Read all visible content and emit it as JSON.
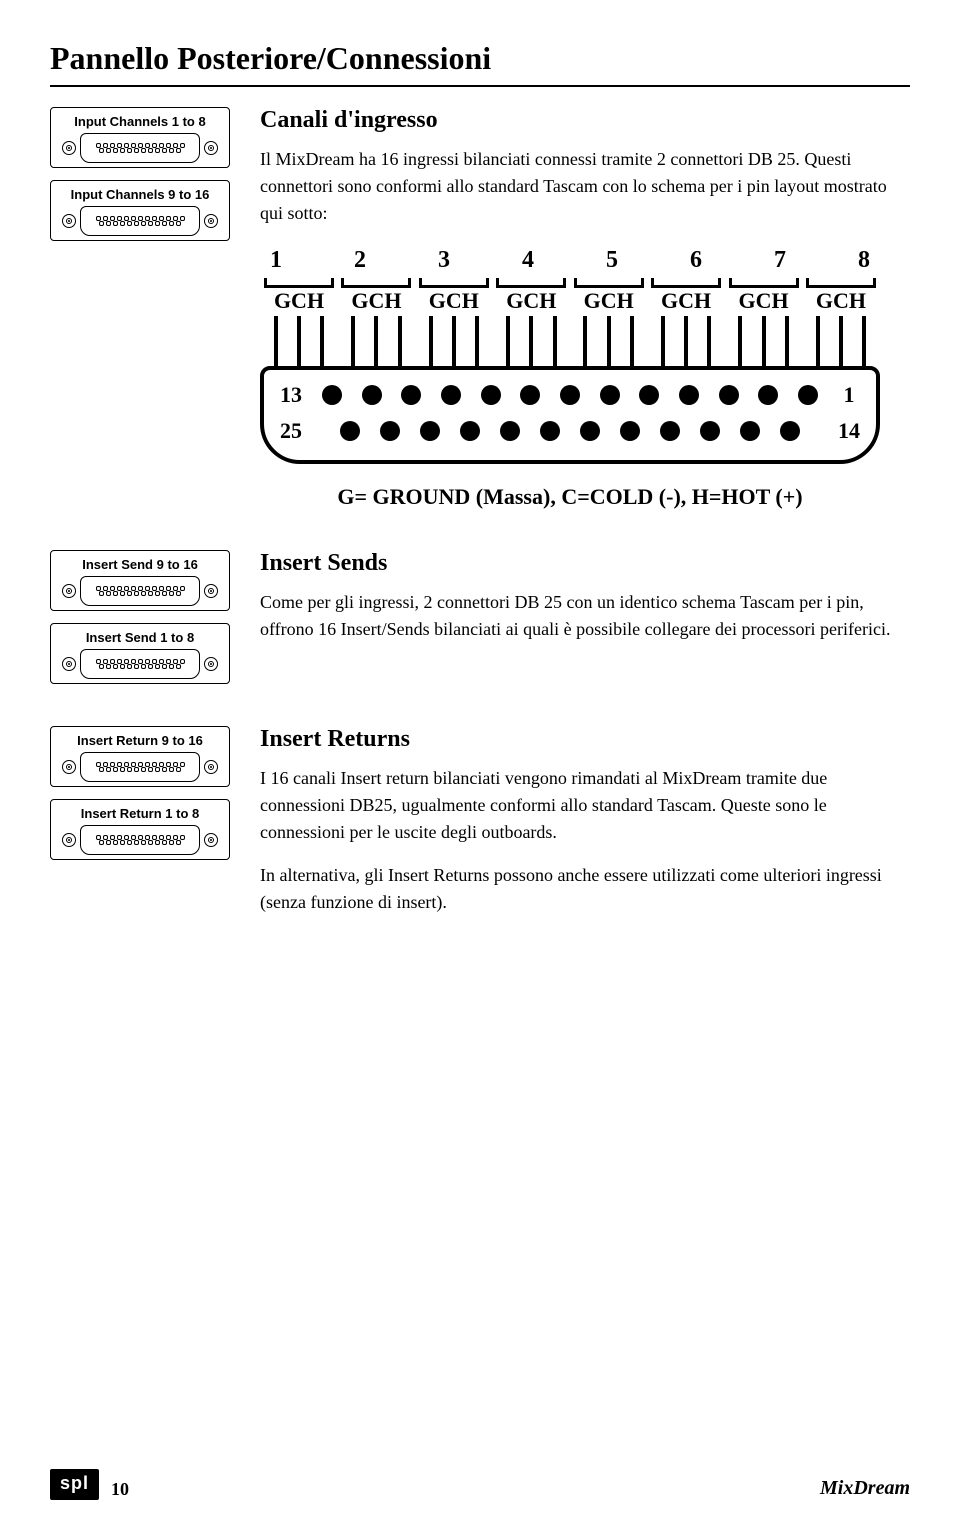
{
  "page_title": "Pannello Posteriore/Connessioni",
  "connectors": {
    "input1_label": "Input Channels 1 to 8",
    "input2_label": "Input Channels 9 to 16",
    "send1_label": "Insert Send 9 to 16",
    "send2_label": "Insert Send 1 to 8",
    "return1_label": "Insert Return 9 to 16",
    "return2_label": "Insert Return 1 to 8"
  },
  "section1": {
    "heading": "Canali d'ingresso",
    "p1": "Il MixDream ha 16 ingressi bilanciati connessi tramite 2 connettori DB 25. Questi connettori sono conformi allo standard Tascam con lo schema per i pin layout mostrato qui sotto:"
  },
  "pinout": {
    "numbers": [
      "1",
      "2",
      "3",
      "4",
      "5",
      "6",
      "7",
      "8"
    ],
    "gch_label": "GCH",
    "row1_left": "13",
    "row1_right": "1",
    "row2_left": "25",
    "row2_right": "14",
    "legend": "G= GROUND (Massa), C=COLD (-), H=HOT (+)"
  },
  "section2": {
    "heading": "Insert Sends",
    "p1": "Come per gli ingressi, 2 connettori DB 25 con un identico schema Tascam per i pin, offrono 16 Insert/Sends bilanciati ai quali è possibile collegare dei processori periferici."
  },
  "section3": {
    "heading": "Insert Returns",
    "p1": "I 16 canali Insert return bilanciati vengono rimandati al MixDream tramite due connessioni DB25, ugualmente conformi allo standard Tascam. Queste sono le connessioni per le uscite degli outboards.",
    "p2": "In alternativa, gli Insert Returns possono anche essere utilizzati come ulteriori ingressi (senza funzione di insert)."
  },
  "footer": {
    "logo": "spl",
    "page_num": "10",
    "product": "MixDream"
  }
}
